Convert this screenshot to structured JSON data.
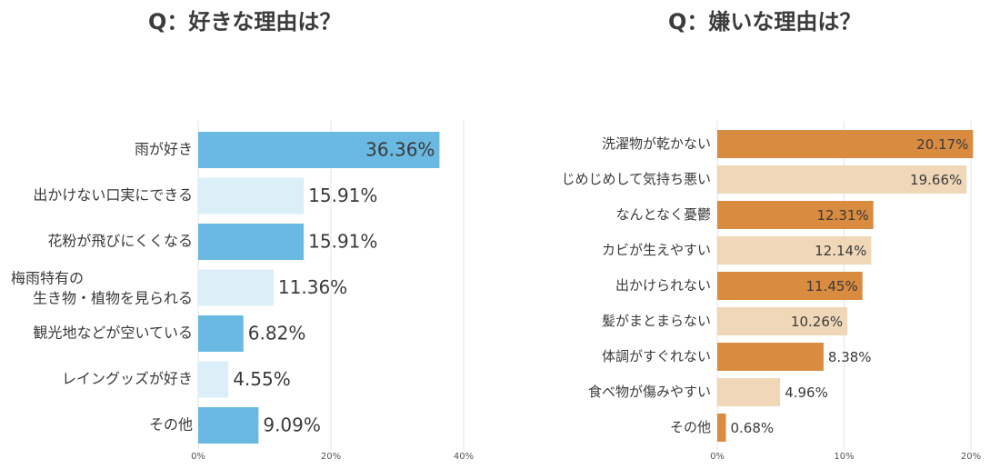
{
  "chart_data": [
    {
      "type": "bar",
      "orientation": "horizontal",
      "title": "Q：好きな理由は？",
      "categories": [
        "雨が好き",
        "出かけない口実にできる",
        "花粉が飛びにくくなる",
        "梅雨特有の\n生き物・植物を見られる",
        "観光地などが空いている",
        "レイングッズが好き",
        "その他"
      ],
      "values": [
        36.36,
        15.91,
        15.91,
        11.36,
        6.82,
        4.55,
        9.09
      ],
      "value_labels": [
        "36.36%",
        "15.91%",
        "15.91%",
        "11.36%",
        "6.82%",
        "4.55%",
        "9.09%"
      ],
      "xlim": [
        0,
        40
      ],
      "ticks": [
        "0%",
        "20%",
        "40%"
      ],
      "grid": true,
      "colors": {
        "strong": "#6ab9e2",
        "light": "#dbeff8"
      }
    },
    {
      "type": "bar",
      "orientation": "horizontal",
      "title": "Q：嫌いな理由は？",
      "categories": [
        "洗濯物が乾かない",
        "じめじめして気持ち悪い",
        "なんとなく憂鬱",
        "カビが生えやすい",
        "出かけられない",
        "髪がまとまらない",
        "体調がすぐれない",
        "食べ物が傷みやすい",
        "その他"
      ],
      "values": [
        20.17,
        19.66,
        12.31,
        12.14,
        11.45,
        10.26,
        8.38,
        4.96,
        0.68
      ],
      "value_labels": [
        "20.17%",
        "19.66%",
        "12.31%",
        "12.14%",
        "11.45%",
        "10.26%",
        "8.38%",
        "4.96%",
        "0.68%"
      ],
      "xlim": [
        0,
        20
      ],
      "ticks": [
        "0%",
        "10%",
        "20%"
      ],
      "grid": true,
      "colors": {
        "strong": "#d98b40",
        "light": "#f0d7b8"
      }
    }
  ]
}
